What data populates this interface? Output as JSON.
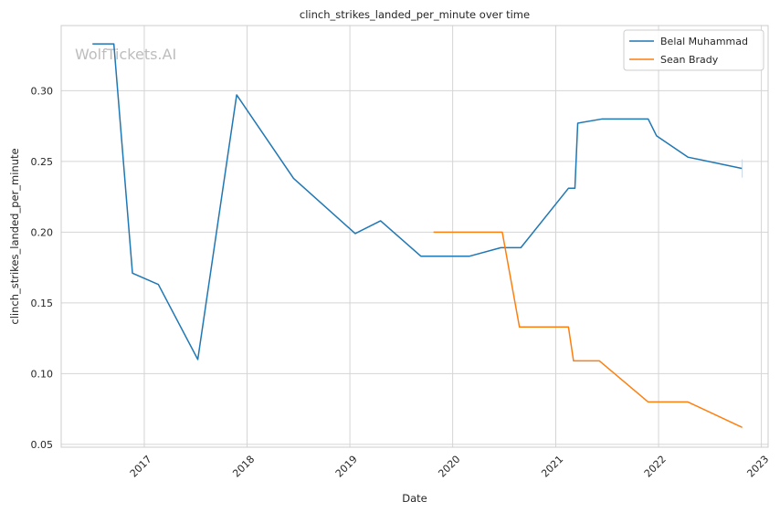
{
  "chart_data": {
    "type": "line",
    "title": "clinch_strikes_landed_per_minute over time",
    "xlabel": "Date",
    "ylabel": "clinch_strikes_landed_per_minute",
    "watermark": "WolfTickets.AI",
    "grid": true,
    "legend_position": "top-right",
    "xlim": [
      "2016-03-12",
      "2023-01-25"
    ],
    "ylim": [
      0.048,
      0.346
    ],
    "x_ticks": [
      "2017-01-01",
      "2018-01-01",
      "2019-01-01",
      "2020-01-01",
      "2021-01-01",
      "2022-01-01",
      "2023-01-01"
    ],
    "x_tick_labels": [
      "2017",
      "2018",
      "2019",
      "2020",
      "2021",
      "2022",
      "2023"
    ],
    "y_ticks": [
      0.05,
      0.1,
      0.15,
      0.2,
      0.25,
      0.3
    ],
    "y_tick_labels": [
      "0.05",
      "0.10",
      "0.15",
      "0.20",
      "0.25",
      "0.30"
    ],
    "series": [
      {
        "name": "Belal Muhammad",
        "color": "#1f77b4",
        "points": [
          [
            "2016-07-01",
            0.333
          ],
          [
            "2016-09-15",
            0.333
          ],
          [
            "2016-11-20",
            0.171
          ],
          [
            "2017-02-20",
            0.163
          ],
          [
            "2017-07-10",
            0.11
          ],
          [
            "2017-11-25",
            0.297
          ],
          [
            "2018-06-15",
            0.238
          ],
          [
            "2019-01-20",
            0.199
          ],
          [
            "2019-04-20",
            0.208
          ],
          [
            "2019-09-10",
            0.183
          ],
          [
            "2020-03-01",
            0.183
          ],
          [
            "2020-06-20",
            0.189
          ],
          [
            "2020-08-30",
            0.189
          ],
          [
            "2021-02-15",
            0.231
          ],
          [
            "2021-03-10",
            0.231
          ],
          [
            "2021-03-20",
            0.277
          ],
          [
            "2021-06-15",
            0.28
          ],
          [
            "2021-11-25",
            0.28
          ],
          [
            "2021-12-25",
            0.268
          ],
          [
            "2022-04-15",
            0.253
          ],
          [
            "2022-10-25",
            0.245
          ]
        ]
      },
      {
        "name": "Sean Brady",
        "color": "#ff7f0e",
        "points": [
          [
            "2019-10-25",
            0.2
          ],
          [
            "2020-06-25",
            0.2
          ],
          [
            "2020-08-25",
            0.133
          ],
          [
            "2021-02-15",
            0.133
          ],
          [
            "2021-03-05",
            0.109
          ],
          [
            "2021-06-05",
            0.109
          ],
          [
            "2021-11-25",
            0.08
          ],
          [
            "2022-04-15",
            0.08
          ],
          [
            "2022-10-25",
            0.062
          ]
        ]
      }
    ]
  }
}
